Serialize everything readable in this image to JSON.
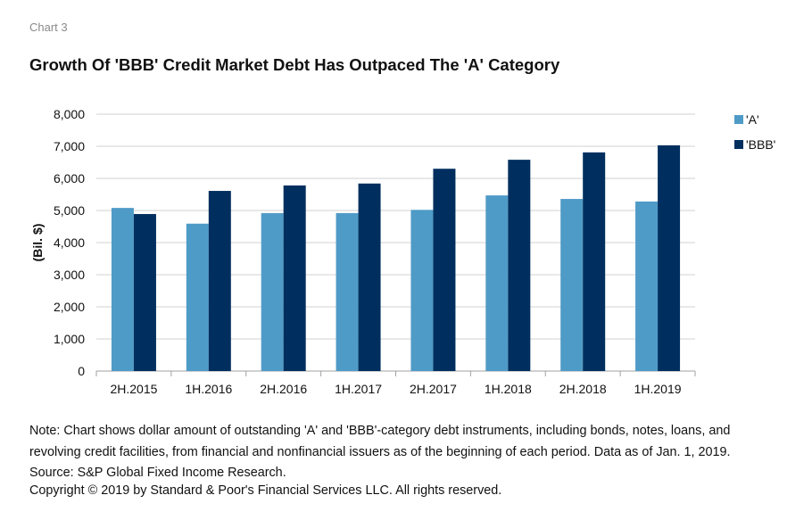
{
  "header": {
    "kicker": "Chart 3",
    "title": "Growth Of 'BBB' Credit Market Debt Has Outpaced The 'A' Category"
  },
  "footer": {
    "note": "Note: Chart shows dollar amount of outstanding 'A' and 'BBB'-category debt instruments, including bonds, notes, loans, and revolving credit facilities, from financial and nonfinancial issuers as of the beginning of each period. Data as of Jan. 1, 2019. Source: S&P Global Fixed Income Research.",
    "copyright": "Copyright © 2019 by Standard & Poor's Financial Services LLC. All rights reserved."
  },
  "chart_data": {
    "type": "bar",
    "title": "Growth Of 'BBB' Credit Market Debt Has Outpaced The 'A' Category",
    "xlabel": "",
    "ylabel": "(Bil. $)",
    "ylim": [
      0,
      8000
    ],
    "yticks": [
      0,
      1000,
      2000,
      3000,
      4000,
      5000,
      6000,
      7000,
      8000
    ],
    "ytick_labels": [
      "0",
      "1,000",
      "2,000",
      "3,000",
      "4,000",
      "5,000",
      "6,000",
      "7,000",
      "8,000"
    ],
    "grid": true,
    "legend": "right",
    "categories": [
      "2H.2015",
      "1H.2016",
      "2H.2016",
      "1H.2017",
      "2H.2017",
      "1H.2018",
      "2H.2018",
      "1H.2019"
    ],
    "series": [
      {
        "name": "'A'",
        "color": "#4f9bc7",
        "values": [
          5080,
          4590,
          4920,
          4920,
          5020,
          5470,
          5360,
          5280
        ]
      },
      {
        "name": "'BBB'",
        "color": "#002f5f",
        "values": [
          4890,
          5610,
          5780,
          5840,
          6300,
          6580,
          6810,
          7030
        ]
      }
    ]
  }
}
